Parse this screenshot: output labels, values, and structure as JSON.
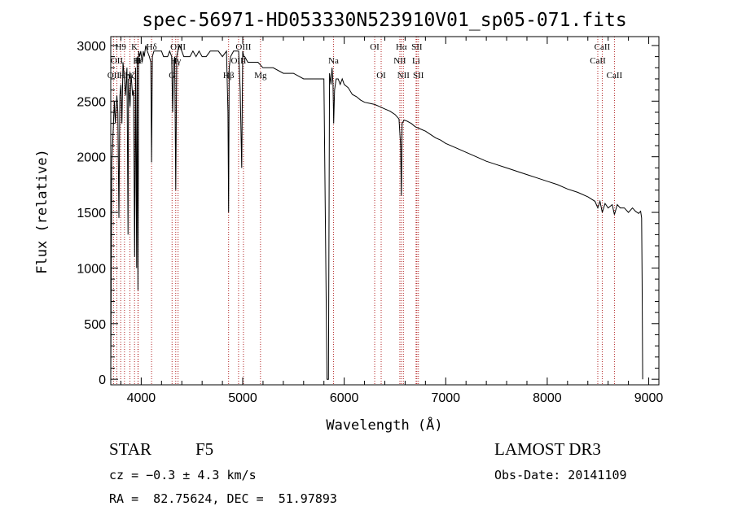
{
  "chart_data": {
    "type": "line",
    "title": "spec-56971-HD053330N523910V01_sp05-071.fits",
    "xlabel": "Wavelength (Å)",
    "ylabel": "Flux (relative)",
    "xlim": [
      3700,
      9100
    ],
    "ylim": [
      -50,
      3080
    ],
    "xticks": [
      4000,
      5000,
      6000,
      7000,
      8000,
      9000
    ],
    "yticks": [
      0,
      500,
      1000,
      1500,
      2000,
      2500,
      3000
    ],
    "line_color": "#000000",
    "marker_color": "#b22222",
    "series": [
      {
        "name": "flux",
        "x": [
          3700,
          3710,
          3720,
          3735,
          3745,
          3760,
          3770,
          3780,
          3790,
          3800,
          3810,
          3820,
          3835,
          3845,
          3860,
          3870,
          3875,
          3880,
          3890,
          3900,
          3915,
          3925,
          3935,
          3945,
          3955,
          3960,
          3968,
          3975,
          3985,
          3995,
          4010,
          4020,
          4030,
          4045,
          4060,
          4080,
          4095,
          4102,
          4110,
          4125,
          4140,
          4160,
          4180,
          4200,
          4220,
          4240,
          4260,
          4280,
          4300,
          4310,
          4320,
          4330,
          4340,
          4350,
          4360,
          4380,
          4400,
          4420,
          4450,
          4480,
          4510,
          4540,
          4570,
          4600,
          4640,
          4680,
          4720,
          4760,
          4800,
          4840,
          4855,
          4861,
          4867,
          4880,
          4910,
          4940,
          4960,
          4975,
          4990,
          5000,
          5010,
          5020,
          5050,
          5100,
          5150,
          5200,
          5300,
          5400,
          5500,
          5600,
          5700,
          5800,
          5830,
          5845,
          5855,
          5870,
          5880,
          5890,
          5896,
          5905,
          5920,
          5940,
          5960,
          5980,
          6000,
          6040,
          6080,
          6120,
          6160,
          6200,
          6250,
          6300,
          6350,
          6400,
          6450,
          6500,
          6540,
          6556,
          6563,
          6570,
          6590,
          6620,
          6660,
          6700,
          6750,
          6800,
          6850,
          6900,
          6950,
          7000,
          7100,
          7200,
          7300,
          7400,
          7500,
          7600,
          7700,
          7800,
          7900,
          8000,
          8100,
          8200,
          8300,
          8400,
          8470,
          8498,
          8520,
          8542,
          8570,
          8600,
          8640,
          8662,
          8690,
          8720,
          8760,
          8800,
          8840,
          8870,
          8900,
          8920,
          8930,
          8935,
          8940
        ],
        "y": [
          0,
          1950,
          2150,
          2500,
          2300,
          2550,
          2400,
          1450,
          2550,
          2650,
          2300,
          2850,
          2700,
          2550,
          2800,
          1300,
          2700,
          2600,
          2450,
          2750,
          2550,
          2600,
          1100,
          2800,
          1000,
          2900,
          800,
          2950,
          2900,
          2950,
          2850,
          2950,
          2900,
          3000,
          2950,
          2900,
          2850,
          1950,
          2900,
          2950,
          2950,
          2950,
          2950,
          2950,
          2900,
          2900,
          2900,
          2950,
          2900,
          2400,
          2850,
          2900,
          1700,
          2900,
          2950,
          3000,
          2950,
          2900,
          2900,
          2900,
          2950,
          2900,
          2950,
          2900,
          2900,
          2950,
          2950,
          2950,
          2900,
          2950,
          2400,
          1500,
          2800,
          2900,
          2950,
          2950,
          2950,
          2600,
          1900,
          2950,
          2900,
          2900,
          2850,
          2850,
          2850,
          2800,
          2800,
          2750,
          2750,
          2700,
          2700,
          2700,
          0,
          0,
          2750,
          2650,
          2800,
          2650,
          2300,
          2600,
          2700,
          2700,
          2650,
          2700,
          2650,
          2620,
          2560,
          2540,
          2510,
          2490,
          2480,
          2470,
          2450,
          2430,
          2410,
          2380,
          2340,
          2100,
          1650,
          2300,
          2330,
          2320,
          2300,
          2270,
          2250,
          2230,
          2200,
          2170,
          2150,
          2120,
          2080,
          2040,
          2000,
          1960,
          1930,
          1900,
          1870,
          1840,
          1810,
          1780,
          1750,
          1710,
          1680,
          1640,
          1600,
          1540,
          1600,
          1500,
          1580,
          1540,
          1570,
          1480,
          1570,
          1540,
          1540,
          1500,
          1540,
          1510,
          1490,
          1510,
          1450,
          900,
          0
        ]
      }
    ],
    "lines": [
      {
        "wl": 3727,
        "label": "OII",
        "row": 2
      },
      {
        "wl": 3760,
        "label": "OII",
        "row": 1
      },
      {
        "wl": 3798,
        "label": "H9",
        "row": 0
      },
      {
        "wl": 3835,
        "label": "Hη",
        "row": 2
      },
      {
        "wl": 3889,
        "label": "Hζ",
        "row": 2
      },
      {
        "wl": 3934,
        "label": "K",
        "row": 0
      },
      {
        "wl": 3968,
        "label": "H",
        "row": 1
      },
      {
        "wl": 3970,
        "label": "Hε",
        "row": 1
      },
      {
        "wl": 4102,
        "label": "Hδ",
        "row": 0
      },
      {
        "wl": 4304,
        "label": "G",
        "row": 2
      },
      {
        "wl": 4340,
        "label": "Hγ",
        "row": 1
      },
      {
        "wl": 4363,
        "label": "OIII",
        "row": 0
      },
      {
        "wl": 4861,
        "label": "Hβ",
        "row": 2
      },
      {
        "wl": 4959,
        "label": "OIII",
        "row": 1
      },
      {
        "wl": 5007,
        "label": "OIII",
        "row": 0
      },
      {
        "wl": 5175,
        "label": "Mg",
        "row": 2
      },
      {
        "wl": 5894,
        "label": "Na",
        "row": 1
      },
      {
        "wl": 6300,
        "label": "OI",
        "row": 0
      },
      {
        "wl": 6364,
        "label": "OI",
        "row": 2
      },
      {
        "wl": 6548,
        "label": "NII",
        "row": 1
      },
      {
        "wl": 6563,
        "label": "Hα",
        "row": 0
      },
      {
        "wl": 6583,
        "label": "NII",
        "row": 2
      },
      {
        "wl": 6708,
        "label": "Li",
        "row": 1
      },
      {
        "wl": 6716,
        "label": "SII",
        "row": 0
      },
      {
        "wl": 6731,
        "label": "SII",
        "row": 2
      },
      {
        "wl": 8498,
        "label": "CaII",
        "row": 1
      },
      {
        "wl": 8542,
        "label": "CaII",
        "row": 0
      },
      {
        "wl": 8662,
        "label": "CaII",
        "row": 2
      }
    ]
  },
  "info": {
    "object_class": "STAR",
    "subclass": "F5",
    "survey": "LAMOST DR3",
    "redshift": "cz = −0.3 ± 4.3 km/s",
    "obs_date": "Obs-Date: 20141109",
    "coords": "RA =  82.75624, DEC =  51.97893"
  }
}
